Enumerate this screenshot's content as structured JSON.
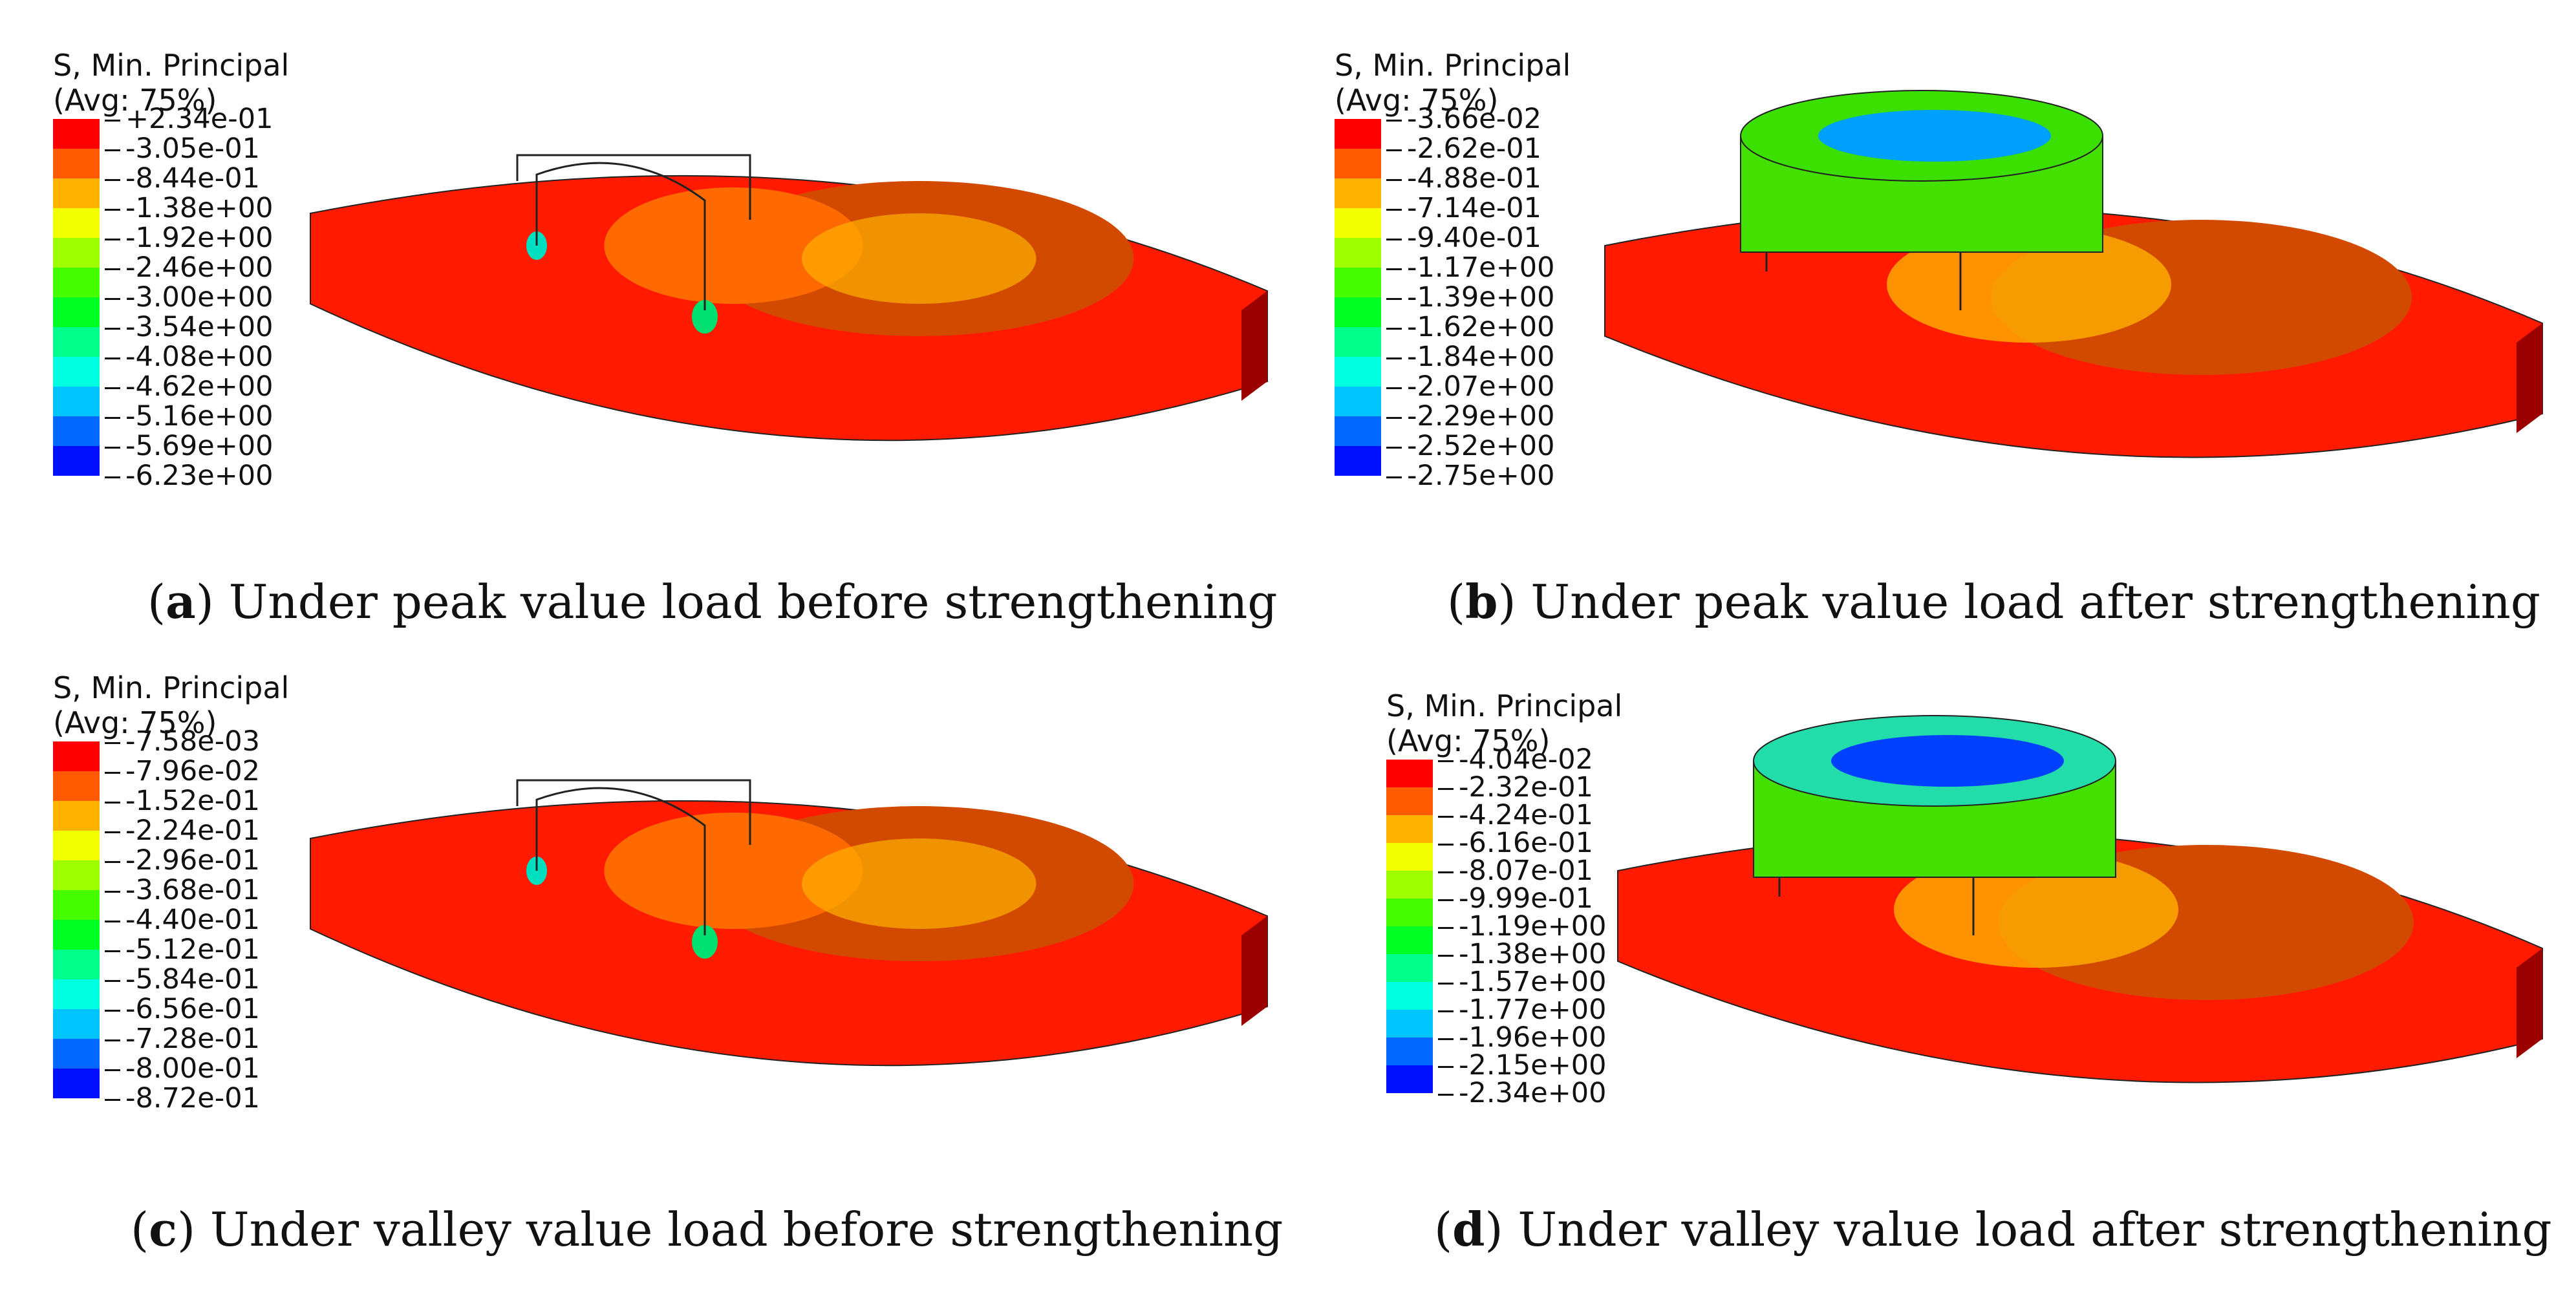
{
  "colors": [
    "#ff0000",
    "#ff5a00",
    "#ffb300",
    "#f2ff00",
    "#9dff00",
    "#45ff00",
    "#00ff22",
    "#00ff8a",
    "#00ffe0",
    "#00c4ff",
    "#0068ff",
    "#0010ff"
  ],
  "panels": [
    {
      "id": "a",
      "legend_title": "S, Min. Principal",
      "legend_subtitle": "(Avg: 75%)",
      "labels": [
        "+2.34e-01",
        "-3.05e-01",
        "-8.44e-01",
        "-1.38e+00",
        "-1.92e+00",
        "-2.46e+00",
        "-3.00e+00",
        "-3.54e+00",
        "-4.08e+00",
        "-4.62e+00",
        "-5.16e+00",
        "-5.69e+00",
        "-6.23e+00"
      ],
      "caption_letter": "a",
      "caption_text": "Under peak value load before strengthening",
      "strengthened": false
    },
    {
      "id": "b",
      "legend_title": "S, Min. Principal",
      "legend_subtitle": "(Avg: 75%)",
      "labels": [
        "-3.66e-02",
        "-2.62e-01",
        "-4.88e-01",
        "-7.14e-01",
        "-9.40e-01",
        "-1.17e+00",
        "-1.39e+00",
        "-1.62e+00",
        "-1.84e+00",
        "-2.07e+00",
        "-2.29e+00",
        "-2.52e+00",
        "-2.75e+00"
      ],
      "caption_letter": "b",
      "caption_text": "Under peak value load after strengthening",
      "strengthened": true
    },
    {
      "id": "c",
      "legend_title": "S, Min. Principal",
      "legend_subtitle": "(Avg: 75%)",
      "labels": [
        "-7.58e-03",
        "-7.96e-02",
        "-1.52e-01",
        "-2.24e-01",
        "-2.96e-01",
        "-3.68e-01",
        "-4.40e-01",
        "-5.12e-01",
        "-5.84e-01",
        "-6.56e-01",
        "-7.28e-01",
        "-8.00e-01",
        "-8.72e-01"
      ],
      "caption_letter": "c",
      "caption_text": "Under valley value load before strengthening",
      "strengthened": false
    },
    {
      "id": "d",
      "legend_title": "S, Min. Principal",
      "legend_subtitle": "(Avg: 75%)",
      "labels": [
        "-4.04e-02",
        "-2.32e-01",
        "-4.24e-01",
        "-6.16e-01",
        "-8.07e-01",
        "-9.99e-01",
        "-1.19e+00",
        "-1.38e+00",
        "-1.57e+00",
        "-1.77e+00",
        "-1.96e+00",
        "-2.15e+00",
        "-2.34e+00"
      ],
      "caption_letter": "d",
      "caption_text": "Under valley value load after strengthening",
      "strengthened": true
    }
  ]
}
